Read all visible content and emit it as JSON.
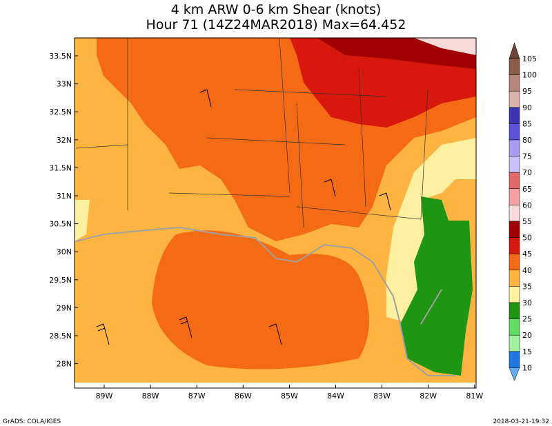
{
  "title": [
    "4 km ARW 0-6 km Shear (knots)",
    "Hour 71 (14Z24MAR2018) Max=64.452"
  ],
  "map": {
    "lat_labels": [
      "33.5N",
      "33N",
      "32.5N",
      "32N",
      "31.5N",
      "31N",
      "30.5N",
      "30N",
      "29.5N",
      "29N",
      "28.5N",
      "28N"
    ],
    "lon_labels": [
      "89W",
      "88W",
      "87W",
      "86W",
      "85W",
      "84W",
      "83W",
      "82W",
      "81W"
    ]
  },
  "colorbar": {
    "levels": [
      105,
      100,
      95,
      90,
      85,
      80,
      75,
      70,
      65,
      60,
      55,
      50,
      45,
      40,
      35,
      30,
      25,
      20,
      15,
      10
    ],
    "colors": [
      "#6b4636",
      "#8c5c4a",
      "#b4877a",
      "#d9b4ab",
      "#3d35b0",
      "#5a52d8",
      "#a89cf0",
      "#c8c0f8",
      "#e06a6a",
      "#f4a0a0",
      "#f8dada",
      "#a00000",
      "#d8180c",
      "#f56a14",
      "#fdb440",
      "#fdf0a0",
      "#1e9614",
      "#64dc64",
      "#a0f0a0",
      "#1e78e0",
      "#64aaf0",
      "#d8ecfc"
    ]
  },
  "footer": {
    "left": "GrADS: COLA/IGES",
    "right": "2018-03-21-19:32"
  }
}
